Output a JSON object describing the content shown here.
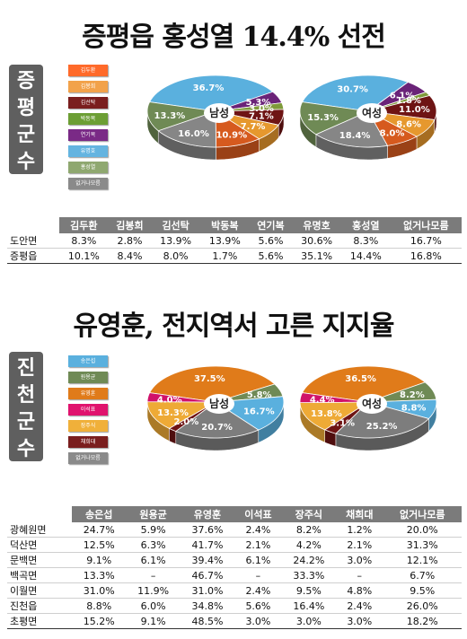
{
  "section1": {
    "title": "증평읍 홍성열 14.4% 선전",
    "side_label": "증평군수",
    "legend": [
      {
        "name": "김두환",
        "color": "#ff6a2a"
      },
      {
        "name": "김봉희",
        "color": "#f2a24a"
      },
      {
        "name": "김선탁",
        "color": "#7a1e1e"
      },
      {
        "name": "박동복",
        "color": "#6c9e34"
      },
      {
        "name": "연기복",
        "color": "#7a2a86"
      },
      {
        "name": "유명호",
        "color": "#64b4e0"
      },
      {
        "name": "홍성열",
        "color": "#8fa870"
      },
      {
        "name": "없거나모름",
        "color": "#8a8a8a"
      }
    ],
    "pie_colors": {
      "김두환": "#d65a1e",
      "김봉희": "#e6982e",
      "김선탁": "#6e1414",
      "박동복": "#7f9a3a",
      "연기복": "#6a2378",
      "유명호": "#5ab0de",
      "홍성열": "#6f8a55",
      "없거나모름": "#868686"
    },
    "table": {
      "headers": [
        "김두환",
        "김봉희",
        "김선탁",
        "박동복",
        "연기복",
        "유명호",
        "홍성열",
        "없거나모름"
      ],
      "rows": [
        {
          "label": "도안면",
          "cells": [
            "8.3%",
            "2.8%",
            "13.9%",
            "13.9%",
            "5.6%",
            "30.6%",
            "8.3%",
            "16.7%"
          ]
        },
        {
          "label": "증평읍",
          "cells": [
            "10.1%",
            "8.4%",
            "8.0%",
            "1.7%",
            "5.6%",
            "35.1%",
            "14.4%",
            "16.8%"
          ]
        }
      ]
    }
  },
  "section2": {
    "title": "유영훈, 전지역서 고른 지지율",
    "side_label": "진천군수",
    "legend": [
      {
        "name": "송은섭",
        "color": "#5ab0de"
      },
      {
        "name": "원용균",
        "color": "#6f8a55"
      },
      {
        "name": "유영훈",
        "color": "#e07b1a"
      },
      {
        "name": "이석표",
        "color": "#e0136e"
      },
      {
        "name": "장주식",
        "color": "#f0b03a"
      },
      {
        "name": "채희대",
        "color": "#7a1e1e"
      },
      {
        "name": "없거나모름",
        "color": "#8a8a8a"
      }
    ],
    "pie_colors": {
      "송은섭": "#5ab0de",
      "원용균": "#6f8a55",
      "유영훈": "#e07b1a",
      "이석표": "#d0126a",
      "장주식": "#eeaa36",
      "채희대": "#6e1414",
      "없거나모름": "#7d7d7d"
    },
    "table": {
      "headers": [
        "송은섭",
        "원용균",
        "유영훈",
        "이석표",
        "장주식",
        "채희대",
        "없거나모름"
      ],
      "rows": [
        {
          "label": "광혜원면",
          "cells": [
            "24.7%",
            "5.9%",
            "37.6%",
            "2.4%",
            "8.2%",
            "1.2%",
            "20.0%"
          ]
        },
        {
          "label": "덕산면",
          "cells": [
            "12.5%",
            "6.3%",
            "41.7%",
            "2.1%",
            "4.2%",
            "2.1%",
            "31.3%"
          ]
        },
        {
          "label": "문백면",
          "cells": [
            "9.1%",
            "6.1%",
            "39.4%",
            "6.1%",
            "24.2%",
            "3.0%",
            "12.1%"
          ]
        },
        {
          "label": "백곡면",
          "cells": [
            "13.3%",
            "–",
            "46.7%",
            "–",
            "33.3%",
            "–",
            "6.7%"
          ]
        },
        {
          "label": "이월면",
          "cells": [
            "31.0%",
            "11.9%",
            "31.0%",
            "2.4%",
            "9.5%",
            "4.8%",
            "9.5%"
          ]
        },
        {
          "label": "진천읍",
          "cells": [
            "8.8%",
            "6.0%",
            "34.8%",
            "5.6%",
            "16.4%",
            "2.4%",
            "26.0%"
          ]
        },
        {
          "label": "초평면",
          "cells": [
            "15.2%",
            "9.1%",
            "48.5%",
            "3.0%",
            "3.0%",
            "3.0%",
            "18.2%"
          ]
        }
      ]
    }
  },
  "chart_data": [
    {
      "type": "pie",
      "center_label": "남성",
      "slices": [
        {
          "name": "유명호",
          "value": 36.7
        },
        {
          "name": "연기복",
          "value": 5.3
        },
        {
          "name": "박동복",
          "value": 3.0
        },
        {
          "name": "김선탁",
          "value": 7.1
        },
        {
          "name": "김봉희",
          "value": 7.7
        },
        {
          "name": "김두환",
          "value": 10.9
        },
        {
          "name": "없거나모름",
          "value": 16.0
        },
        {
          "name": "홍성열",
          "value": 13.3
        }
      ]
    },
    {
      "type": "pie",
      "center_label": "여성",
      "slices": [
        {
          "name": "유명호",
          "value": 30.7
        },
        {
          "name": "연기복",
          "value": 6.1
        },
        {
          "name": "박동복",
          "value": 1.8
        },
        {
          "name": "김선탁",
          "value": 11.0
        },
        {
          "name": "김봉희",
          "value": 8.6
        },
        {
          "name": "김두환",
          "value": 8.0
        },
        {
          "name": "없거나모름",
          "value": 18.4
        },
        {
          "name": "홍성열",
          "value": 15.3
        }
      ]
    },
    {
      "type": "pie",
      "center_label": "남성",
      "slices": [
        {
          "name": "유영훈",
          "value": 37.5
        },
        {
          "name": "원용균",
          "value": 5.8
        },
        {
          "name": "송은섭",
          "value": 16.7
        },
        {
          "name": "없거나모름",
          "value": 20.7
        },
        {
          "name": "채희대",
          "value": 2.0
        },
        {
          "name": "장주식",
          "value": 13.3
        },
        {
          "name": "이석표",
          "value": 4.0
        }
      ]
    },
    {
      "type": "pie",
      "center_label": "여성",
      "slices": [
        {
          "name": "유영훈",
          "value": 36.5
        },
        {
          "name": "원용균",
          "value": 8.2
        },
        {
          "name": "송은섭",
          "value": 8.8
        },
        {
          "name": "없거나모름",
          "value": 25.2
        },
        {
          "name": "채희대",
          "value": 3.1
        },
        {
          "name": "장주식",
          "value": 13.8
        },
        {
          "name": "이석표",
          "value": 4.4
        }
      ]
    }
  ]
}
